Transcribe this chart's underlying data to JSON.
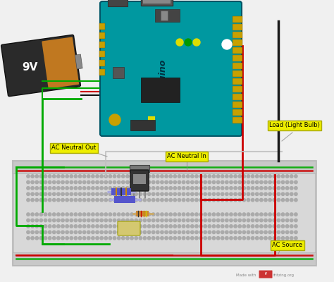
{
  "bg_color": "#f0f0f0",
  "labels": {
    "ac_neutral_out": "AC Neutral Out",
    "ac_neutral_in": "AC Neutral In",
    "load": "Load (Light Bulb)",
    "ac_source": "AC Source"
  },
  "colors": {
    "arduino_body": "#0098a0",
    "battery_dark": "#2a2a2a",
    "battery_orange": "#c07820",
    "wire_red": "#cc0000",
    "wire_green": "#00aa00",
    "wire_black": "#1a1a1a",
    "wire_gray": "#aaaaaa",
    "label_bg": "#eeee00",
    "label_border": "#aaaa00",
    "breadboard_bg": "#d8d8d8",
    "breadboard_rail": "#c0c0c0"
  }
}
